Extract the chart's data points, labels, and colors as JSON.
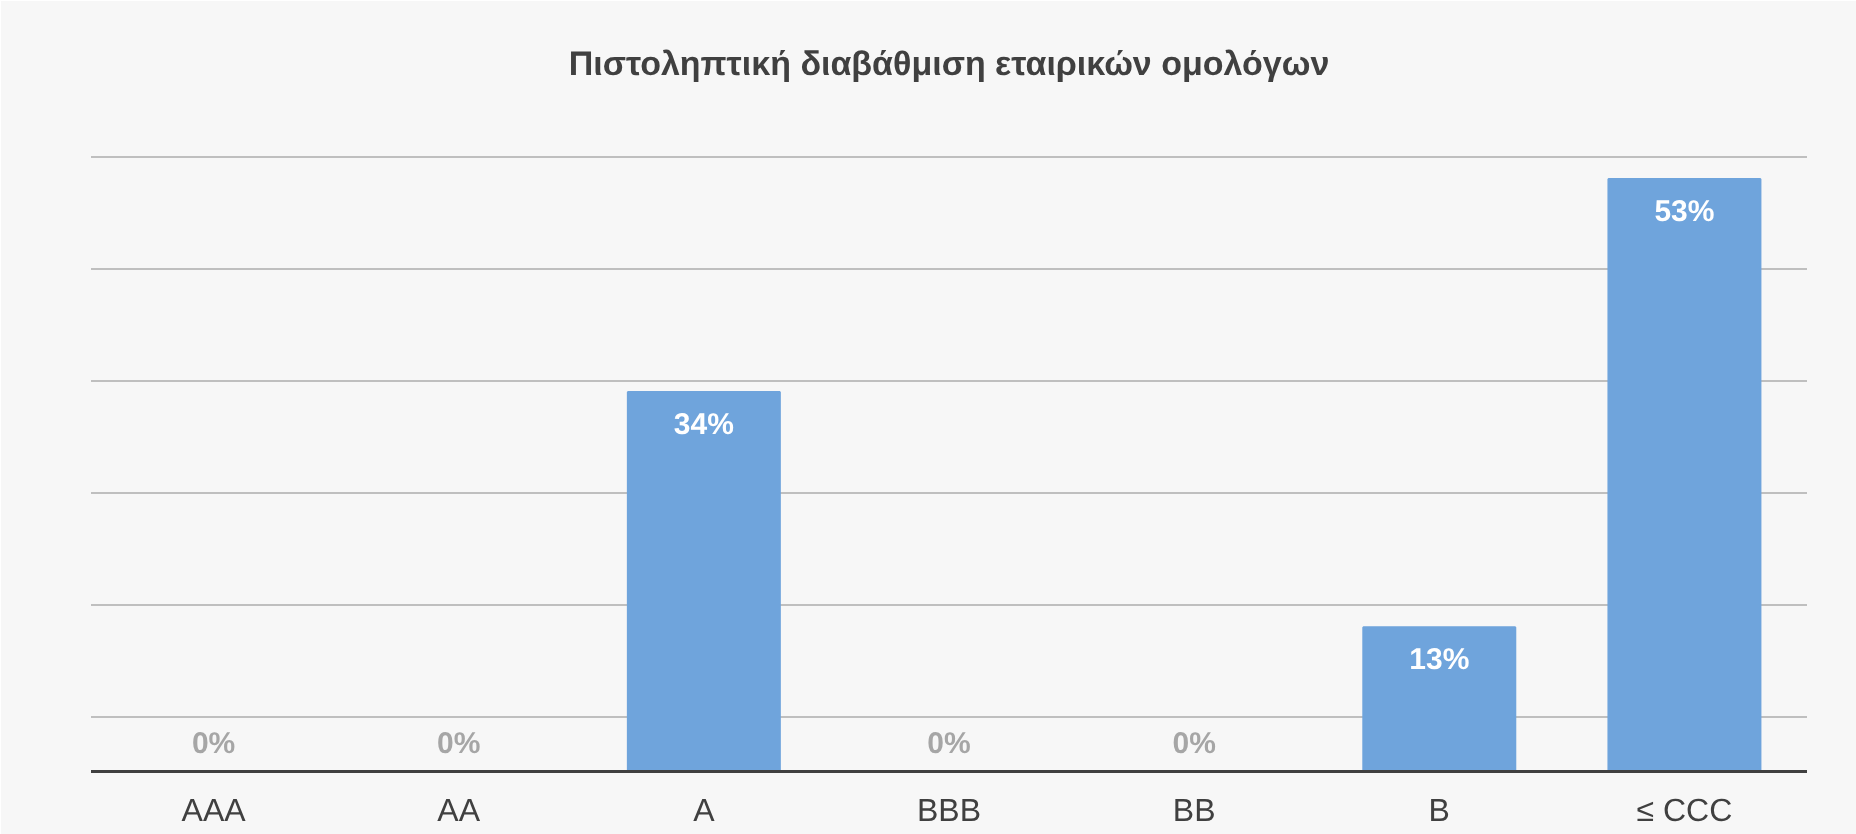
{
  "chart_data": {
    "type": "bar",
    "title": "Πιστοληπτική διαβάθμιση εταιρικών ομολόγων",
    "categories": [
      "AAA",
      "AA",
      "A",
      "BBB",
      "BB",
      "B",
      "≤ CCC"
    ],
    "values": [
      0,
      0,
      34,
      0,
      0,
      13,
      53
    ],
    "value_labels": [
      "0%",
      "0%",
      "34%",
      "0%",
      "0%",
      "13%",
      "53%"
    ],
    "color": "#6fa4dc",
    "ylim": [
      0,
      58
    ],
    "yticks": [
      {
        "value": 5,
        "label": null
      },
      {
        "value": 15,
        "label": null
      },
      {
        "value": 25,
        "label": null
      },
      {
        "value": 35,
        "label": null
      },
      {
        "value": 45,
        "label": null
      },
      {
        "value": 55,
        "label": null
      }
    ],
    "tick_labels": "x",
    "grid": "y"
  }
}
